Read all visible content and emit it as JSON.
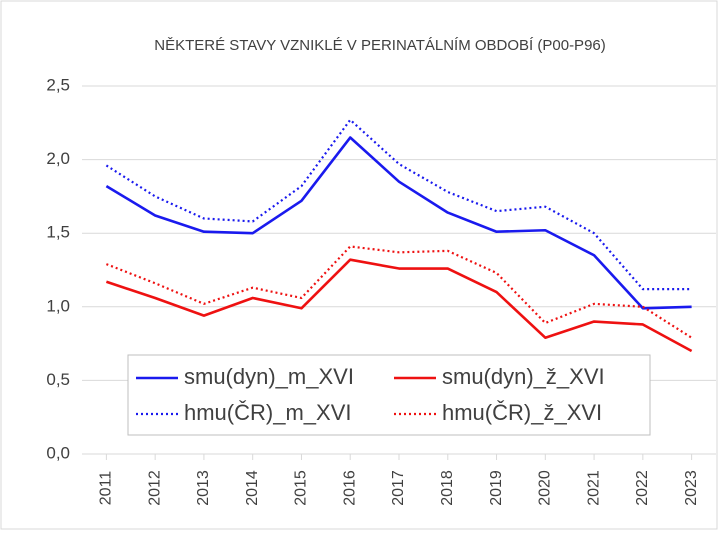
{
  "chart_data": {
    "type": "line",
    "title": "NĚKTERÉ STAVY VZNIKLÉ V PERINATÁLNÍM OBDOBÍ (P00-P96)",
    "categories": [
      "2011",
      "2012",
      "2013",
      "2014",
      "2015",
      "2016",
      "2017",
      "2018",
      "2019",
      "2020",
      "2021",
      "2022",
      "2023"
    ],
    "series": [
      {
        "name": "smu(dyn)_m_XVI",
        "color": "#1a1aee",
        "style": "solid",
        "values": [
          1.82,
          1.62,
          1.51,
          1.5,
          1.72,
          2.15,
          1.85,
          1.64,
          1.51,
          1.52,
          1.35,
          0.99,
          1.0
        ]
      },
      {
        "name": "smu(dyn)_ž_XVI",
        "color": "#ee1111",
        "style": "solid",
        "values": [
          1.17,
          1.06,
          0.94,
          1.06,
          0.99,
          1.32,
          1.26,
          1.26,
          1.1,
          0.79,
          0.9,
          0.88,
          0.7
        ]
      },
      {
        "name": "hmu(ČR)_m_XVI",
        "color": "#1a1aee",
        "style": "dotted",
        "values": [
          1.96,
          1.75,
          1.6,
          1.58,
          1.82,
          2.27,
          1.97,
          1.78,
          1.65,
          1.68,
          1.5,
          1.12,
          1.12
        ]
      },
      {
        "name": "hmu(ČR)_ž_XVI",
        "color": "#ee1111",
        "style": "dotted",
        "values": [
          1.29,
          1.16,
          1.02,
          1.13,
          1.06,
          1.41,
          1.37,
          1.38,
          1.23,
          0.89,
          1.02,
          1.0,
          0.79
        ]
      }
    ],
    "ylim": [
      0,
      2.5
    ],
    "yticks": [
      {
        "value": 0,
        "label": "0,0"
      },
      {
        "value": 0.5,
        "label": "0,5"
      },
      {
        "value": 1,
        "label": "1,0"
      },
      {
        "value": 1.5,
        "label": "1,5"
      },
      {
        "value": 2,
        "label": "2,0"
      },
      {
        "value": 2.5,
        "label": "2,5"
      }
    ],
    "grid": true
  }
}
